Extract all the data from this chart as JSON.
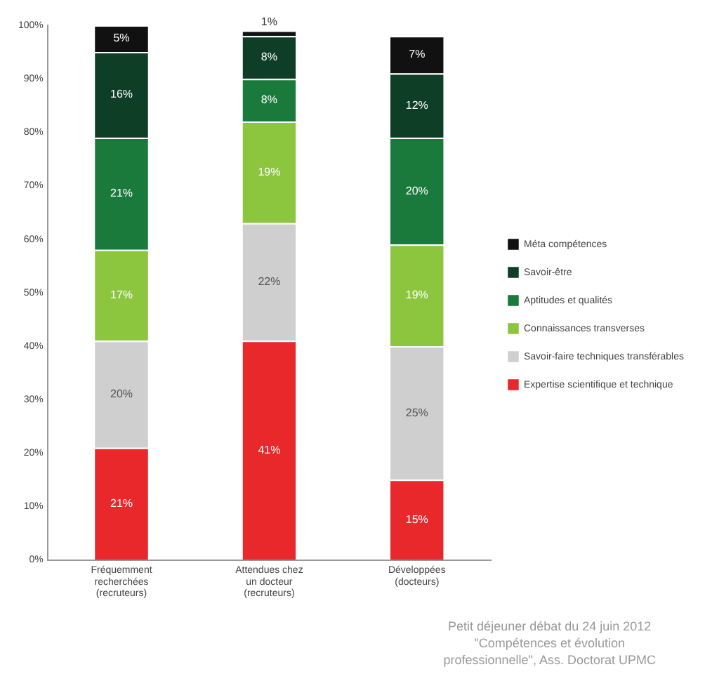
{
  "chart_data": {
    "type": "bar",
    "stacked": true,
    "categories": [
      "Fréquemment\nrecherchées\n(recruteurs)",
      "Attendues chez\nun docteur\n(recruteurs)",
      "Développées\n(docteurs)"
    ],
    "series": [
      {
        "name": "Expertise scientifique et technique",
        "color": "#e8282a",
        "values": [
          21,
          41,
          15
        ],
        "value_labels": [
          "21%",
          "41%",
          "15%"
        ]
      },
      {
        "name": "Savoir-faire techniques transférables",
        "color": "#cfcfcf",
        "values": [
          20,
          22,
          25
        ],
        "value_labels": [
          "20%",
          "22%",
          "25%"
        ]
      },
      {
        "name": "Connaissances transverses",
        "color": "#8cc63f",
        "values": [
          17,
          19,
          19
        ],
        "value_labels": [
          "17%",
          "19%",
          "19%"
        ]
      },
      {
        "name": "Aptitudes et qualités",
        "color": "#1a7a3c",
        "values": [
          21,
          8,
          20
        ],
        "value_labels": [
          "21%",
          "8%",
          "20%"
        ]
      },
      {
        "name": "Savoir-être",
        "color": "#0e3f26",
        "values": [
          16,
          8,
          12
        ],
        "value_labels": [
          "16%",
          "8%",
          "12%"
        ]
      },
      {
        "name": "Méta compétences",
        "color": "#111111",
        "values": [
          5,
          1,
          7
        ],
        "value_labels": [
          "5%",
          "1%",
          "7%"
        ]
      }
    ],
    "ylim": [
      0,
      100
    ],
    "yticks": [
      {
        "value": 0,
        "label": "0%"
      },
      {
        "value": 10,
        "label": "10%"
      },
      {
        "value": 20,
        "label": "20%"
      },
      {
        "value": 30,
        "label": "30%"
      },
      {
        "value": 40,
        "label": "40%"
      },
      {
        "value": 50,
        "label": "50%"
      },
      {
        "value": 60,
        "label": "60%"
      },
      {
        "value": 70,
        "label": "70%"
      },
      {
        "value": 80,
        "label": "80%"
      },
      {
        "value": 90,
        "label": "90%"
      },
      {
        "value": 100,
        "label": "100%"
      }
    ],
    "grid": false,
    "legend": "right",
    "annotations": [
      "Petit déjeuner débat du 24 juin 2012\n\"Compétences et évolution\nprofessionnelle\", Ass. Doctorat UPMC"
    ]
  }
}
